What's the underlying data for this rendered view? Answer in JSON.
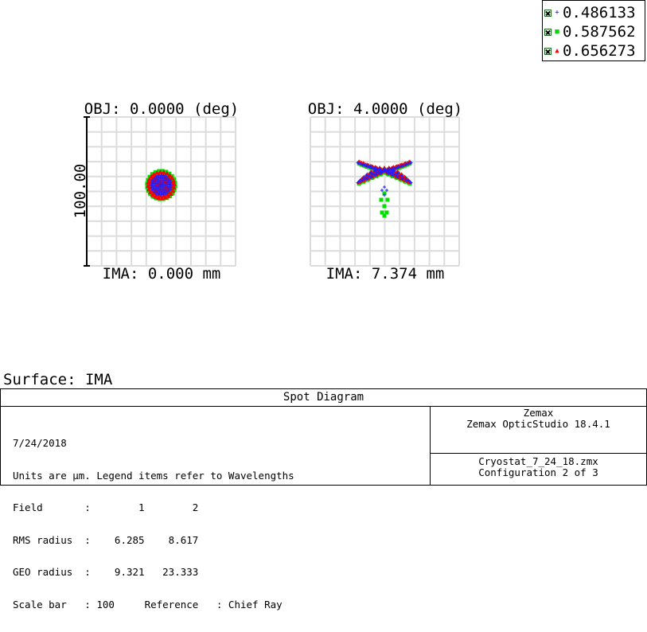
{
  "legend": {
    "items": [
      {
        "wavelength": "0.486133",
        "symbol": "+",
        "color": "#0000ff"
      },
      {
        "wavelength": "0.587562",
        "symbol": "■",
        "color": "#00ff00"
      },
      {
        "wavelength": "0.656273",
        "symbol": "▲",
        "color": "#ff0000"
      }
    ]
  },
  "chart_data": [
    {
      "type": "scatter",
      "title": "OBJ: 0.0000 (deg)",
      "xlabel": "IMA: 0.000 mm",
      "ylabel": "100.00",
      "scale_bar_um": 100,
      "grid": true,
      "series": [
        {
          "name": "0.486133",
          "pattern": "ring",
          "center": [
            0,
            0
          ],
          "radius": 9.3
        },
        {
          "name": "0.587562",
          "pattern": "ring",
          "center": [
            0,
            0
          ],
          "radius": 9.3
        },
        {
          "name": "0.656273",
          "pattern": "ring",
          "center": [
            0,
            0
          ],
          "radius": 9.3
        }
      ]
    },
    {
      "type": "scatter",
      "title": "OBJ: 4.0000 (deg)",
      "xlabel": "IMA: 7.374 mm",
      "ylabel": "",
      "grid": true,
      "series": [
        {
          "name": "0.486133",
          "pattern": "comatic",
          "center": [
            0,
            5
          ],
          "radius": 23.3
        },
        {
          "name": "0.587562",
          "pattern": "comatic",
          "center": [
            0,
            5
          ],
          "radius": 23.3
        },
        {
          "name": "0.656273",
          "pattern": "comatic",
          "center": [
            0,
            5
          ],
          "radius": 23.3
        }
      ]
    }
  ],
  "surface": {
    "label": "Surface: IMA"
  },
  "info": {
    "title": "Spot Diagram",
    "left_lines": [
      "7/24/2018",
      "Units are µm. Legend items refer to Wavelengths",
      "Field       :        1        2",
      "RMS radius  :    6.285    8.617",
      "GEO radius  :    9.321   23.333",
      "Scale bar   : 100     Reference   : Chief Ray"
    ],
    "right_top": [
      "Zemax",
      "Zemax OpticStudio 18.4.1"
    ],
    "right_bottom": [
      "Cryostat_7_24_18.zmx",
      "Configuration 2 of 3"
    ]
  }
}
